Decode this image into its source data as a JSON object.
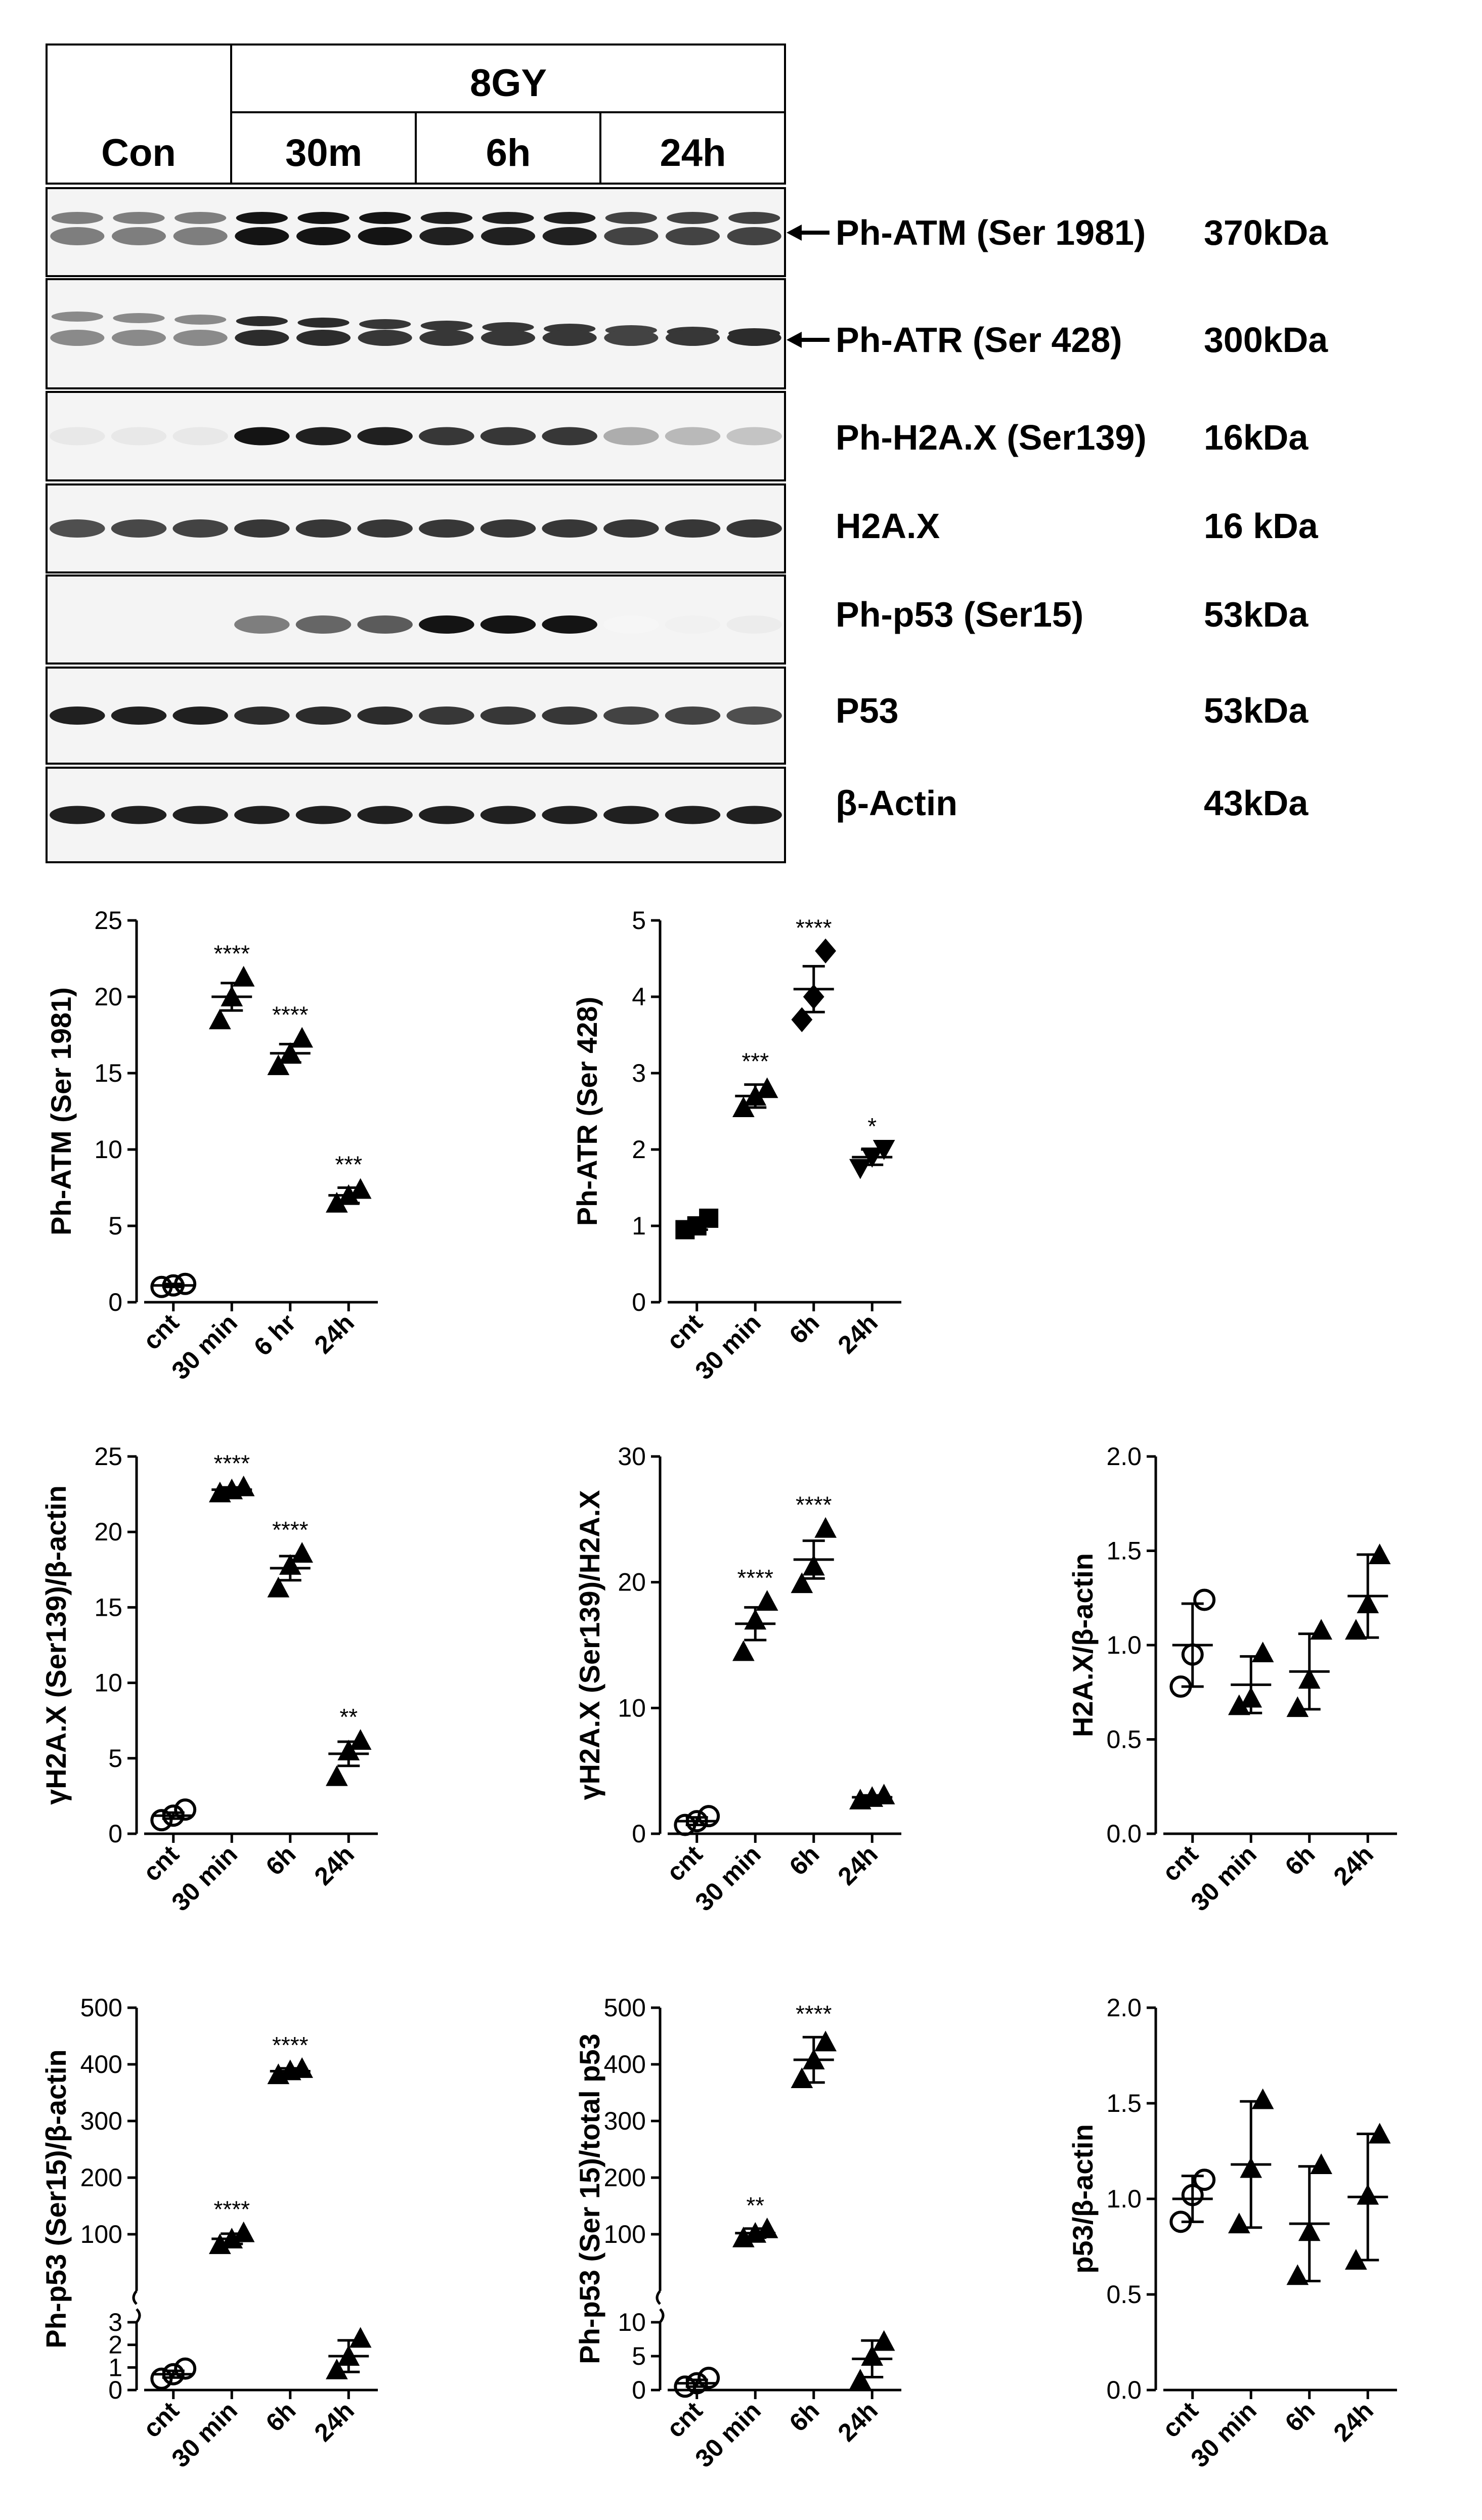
{
  "western_blot": {
    "header": {
      "control_label": "Con",
      "treatment_label": "8GY",
      "timepoints": [
        "30m",
        "6h",
        "24h"
      ]
    },
    "bands": [
      {
        "name": "Ph-ATM (Ser 1981)",
        "size": "370kDa",
        "arrow": true
      },
      {
        "name": "Ph-ATR (Ser 428)",
        "size": "300kDa",
        "arrow": true
      },
      {
        "name": "Ph-H2A.X (Ser139)",
        "size": "16kDa",
        "arrow": false
      },
      {
        "name": "H2A.X",
        "size": "16 kDa",
        "arrow": false
      },
      {
        "name": "Ph-p53 (Ser15)",
        "size": "53kDa",
        "arrow": false
      },
      {
        "name": "P53",
        "size": "53kDa",
        "arrow": false
      },
      {
        "name": "β-Actin",
        "size": "43kDa",
        "arrow": false
      }
    ],
    "band_intensity_per_lane": [
      [
        0.55,
        0.55,
        0.55,
        1,
        1,
        1,
        0.95,
        0.95,
        0.95,
        0.8,
        0.8,
        0.8
      ],
      [
        0.5,
        0.5,
        0.5,
        0.9,
        0.9,
        0.85,
        0.85,
        0.85,
        0.85,
        0.8,
        0.85,
        0.9
      ],
      [
        0.1,
        0.1,
        0.1,
        1,
        0.95,
        0.95,
        0.85,
        0.85,
        0.85,
        0.35,
        0.3,
        0.25
      ],
      [
        0.75,
        0.78,
        0.8,
        0.85,
        0.85,
        0.85,
        0.85,
        0.85,
        0.85,
        0.85,
        0.85,
        0.85
      ],
      [
        0,
        0,
        0,
        0.55,
        0.65,
        0.7,
        1,
        1,
        1,
        0.04,
        0.06,
        0.08
      ],
      [
        0.95,
        0.95,
        0.95,
        0.9,
        0.9,
        0.9,
        0.85,
        0.85,
        0.85,
        0.8,
        0.8,
        0.75
      ],
      [
        0.95,
        0.95,
        0.95,
        0.95,
        0.95,
        0.95,
        0.95,
        0.95,
        0.95,
        0.95,
        0.95,
        0.95
      ]
    ]
  },
  "chart_data": [
    {
      "type": "scatter",
      "id": "atm",
      "ylabel": "Ph-ATM (Ser 1981)",
      "categories": [
        "cnt",
        "30 min",
        "6 hr",
        "24h"
      ],
      "ylim": [
        0,
        25
      ],
      "yticks": [
        0,
        5,
        10,
        15,
        20,
        25
      ],
      "markers": [
        "circle",
        "triangle",
        "triangle",
        "triangle"
      ],
      "points": [
        [
          1.0,
          1.1,
          1.2
        ],
        [
          18.5,
          20.0,
          21.3
        ],
        [
          15.5,
          16.3,
          17.3
        ],
        [
          6.5,
          7.0,
          7.4
        ]
      ],
      "mean": [
        1.1,
        20.0,
        16.3,
        7.0
      ],
      "err": [
        0.1,
        0.9,
        0.6,
        0.5
      ],
      "significance": [
        "",
        "****",
        "****",
        "***"
      ]
    },
    {
      "type": "scatter",
      "id": "atr",
      "ylabel": "Ph-ATR (Ser 428)",
      "categories": [
        "cnt",
        "30 min",
        "6h",
        "24h"
      ],
      "ylim": [
        0,
        5
      ],
      "yticks": [
        0,
        1,
        2,
        3,
        4,
        5
      ],
      "markers": [
        "square",
        "triangle",
        "diamond",
        "triangle-down"
      ],
      "points": [
        [
          0.95,
          1.0,
          1.1
        ],
        [
          2.55,
          2.7,
          2.8
        ],
        [
          3.7,
          4.0,
          4.6
        ],
        [
          1.75,
          1.9,
          2.0
        ]
      ],
      "mean": [
        1.0,
        2.7,
        4.1,
        1.9
      ],
      "err": [
        0.05,
        0.15,
        0.3,
        0.1
      ],
      "significance": [
        "",
        "***",
        "****",
        "*"
      ]
    },
    {
      "type": "scatter",
      "id": "gh2ax_actin",
      "ylabel": "γH2A.X (Ser139)/β-actin",
      "categories": [
        "cnt",
        "30 min",
        "6h",
        "24h"
      ],
      "ylim": [
        0,
        25
      ],
      "yticks": [
        0,
        5,
        10,
        15,
        20,
        25
      ],
      "markers": [
        "circle",
        "triangle",
        "triangle",
        "triangle"
      ],
      "points": [
        [
          0.9,
          1.2,
          1.6
        ],
        [
          22.6,
          22.8,
          23.0
        ],
        [
          16.3,
          17.8,
          18.6
        ],
        [
          3.8,
          5.5,
          6.2
        ]
      ],
      "mean": [
        1.2,
        22.8,
        17.6,
        5.3
      ],
      "err": [
        0.2,
        0.15,
        0.8,
        0.8
      ],
      "significance": [
        "",
        "****",
        "****",
        "**"
      ]
    },
    {
      "type": "scatter",
      "id": "gh2ax_h2ax",
      "ylabel": "γH2A.X (Ser139)/H2A.X",
      "categories": [
        "cnt",
        "30 min",
        "6h",
        "24h"
      ],
      "ylim": [
        0,
        30
      ],
      "yticks": [
        0,
        10,
        20,
        30
      ],
      "markers": [
        "circle",
        "triangle",
        "triangle",
        "triangle"
      ],
      "points": [
        [
          0.7,
          1.0,
          1.4
        ],
        [
          14.5,
          17.0,
          18.5
        ],
        [
          19.9,
          21.3,
          24.3
        ],
        [
          2.7,
          2.9,
          3.1
        ]
      ],
      "mean": [
        1.0,
        16.7,
        21.8,
        2.9
      ],
      "err": [
        0.3,
        1.3,
        1.5,
        0.15
      ],
      "significance": [
        "",
        "****",
        "****",
        ""
      ]
    },
    {
      "type": "scatter",
      "id": "h2ax_actin",
      "ylabel": "H2A.X/β-actin",
      "categories": [
        "cnt",
        "30 min",
        "6h",
        "24h"
      ],
      "ylim": [
        0,
        2.0
      ],
      "yticks": [
        0.0,
        0.5,
        1.0,
        1.5,
        2.0
      ],
      "tickdec": 1,
      "sd_bars": true,
      "markers": [
        "circle",
        "triangle",
        "triangle",
        "triangle"
      ],
      "points": [
        [
          0.78,
          0.95,
          1.24
        ],
        [
          0.68,
          0.72,
          0.96
        ],
        [
          0.67,
          0.82,
          1.08
        ],
        [
          1.08,
          1.22,
          1.48
        ]
      ],
      "mean": [
        1.0,
        0.79,
        0.86,
        1.26
      ],
      "err": [
        0.22,
        0.15,
        0.2,
        0.22
      ],
      "significance": [
        "",
        "",
        "",
        ""
      ]
    },
    {
      "type": "scatter",
      "id": "php53_actin",
      "ylabel": "Ph-p53 (Ser15)/β-actin",
      "categories": [
        "cnt",
        "30 min",
        "6h",
        "24h"
      ],
      "broken": true,
      "upper_range": [
        0,
        500
      ],
      "upper_ticks": [
        100,
        200,
        300,
        400,
        500
      ],
      "lower_range": [
        0,
        3
      ],
      "lower_ticks": [
        0,
        1,
        2,
        3
      ],
      "markers": [
        "circle",
        "triangle",
        "triangle",
        "triangle"
      ],
      "points": [
        [
          0.5,
          0.7,
          0.95
        ],
        [
          82,
          92,
          103
        ],
        [
          382,
          389,
          393
        ],
        [
          0.9,
          1.5,
          2.3
        ]
      ],
      "mean": [
        0.7,
        92,
        388,
        1.5
      ],
      "err": [
        0.15,
        9,
        5,
        0.7
      ],
      "significance": [
        "",
        "****",
        "****",
        ""
      ]
    },
    {
      "type": "scatter",
      "id": "php53_total",
      "ylabel": "Ph-p53 (Ser 15)/total p53",
      "categories": [
        "cnt",
        "30 min",
        "6h",
        "24h"
      ],
      "broken": true,
      "upper_range": [
        0,
        500
      ],
      "upper_ticks": [
        100,
        200,
        300,
        400,
        500
      ],
      "lower_range": [
        0,
        10
      ],
      "lower_ticks": [
        0,
        5,
        10
      ],
      "markers": [
        "circle",
        "triangle",
        "triangle",
        "triangle"
      ],
      "points": [
        [
          0.5,
          1.0,
          1.8
        ],
        [
          94,
          102,
          110
        ],
        [
          375,
          408,
          440
        ],
        [
          1.5,
          5.0,
          7.2
        ]
      ],
      "mean": [
        1.0,
        102,
        408,
        4.6
      ],
      "err": [
        0.5,
        8,
        40,
        2.7
      ],
      "significance": [
        "",
        "**",
        "****",
        ""
      ]
    },
    {
      "type": "scatter",
      "id": "p53_actin",
      "ylabel": "p53/β-actin",
      "categories": [
        "cnt",
        "30 min",
        "6h",
        "24h"
      ],
      "ylim": [
        0,
        2.0
      ],
      "yticks": [
        0.0,
        0.5,
        1.0,
        1.5,
        2.0
      ],
      "tickdec": 1,
      "sd_bars": true,
      "markers": [
        "circle",
        "triangle",
        "triangle",
        "triangle"
      ],
      "points": [
        [
          0.88,
          1.02,
          1.1
        ],
        [
          0.87,
          1.16,
          1.52
        ],
        [
          0.6,
          0.83,
          1.18
        ],
        [
          0.68,
          1.02,
          1.34
        ]
      ],
      "mean": [
        1.0,
        1.18,
        0.87,
        1.01
      ],
      "err": [
        0.12,
        0.33,
        0.3,
        0.33
      ],
      "significance": [
        "",
        "",
        "",
        ""
      ]
    }
  ]
}
